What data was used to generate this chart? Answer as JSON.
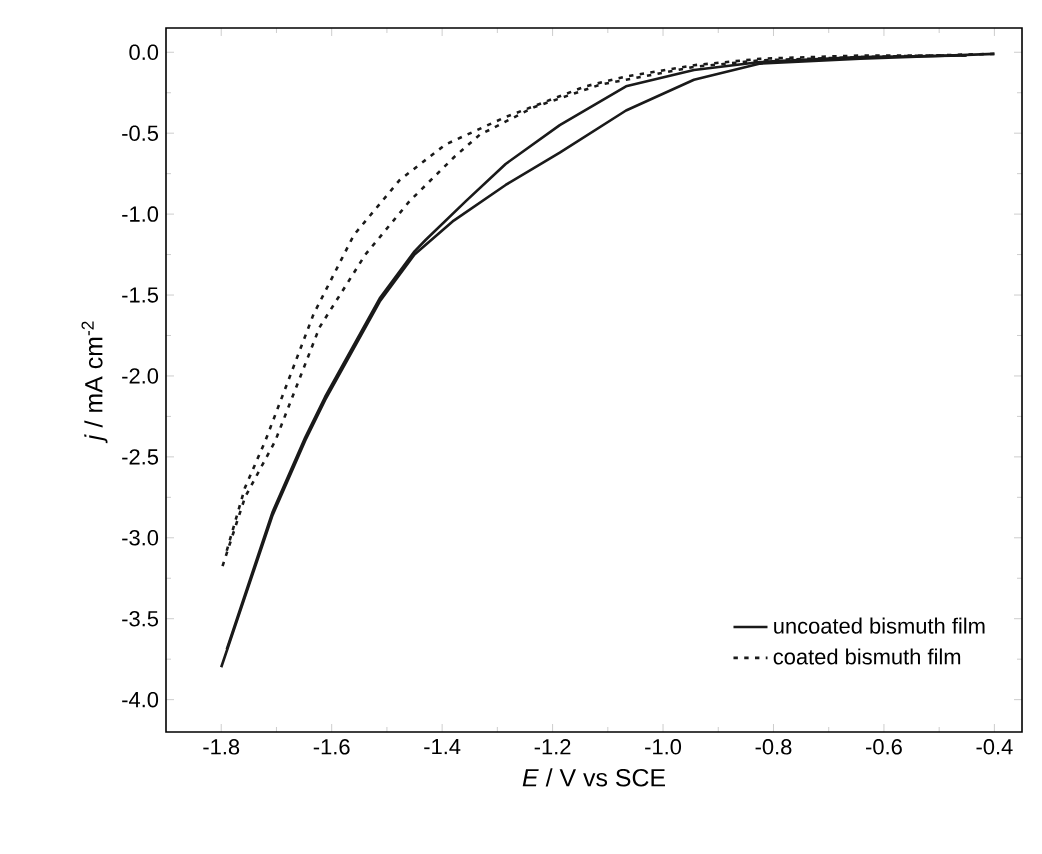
{
  "chart_data": {
    "type": "line",
    "xlabel": "*E* / V vs SCE",
    "ylabel": "*j* / mA cm$^{-2}$",
    "xlim": [
      -1.9,
      -0.35
    ],
    "ylim": [
      -4.2,
      0.15
    ],
    "xticks": [
      {
        "value": -1.8,
        "label": "-1.8"
      },
      {
        "value": -1.6,
        "label": "-1.6"
      },
      {
        "value": -1.4,
        "label": "-1.4"
      },
      {
        "value": -1.2,
        "label": "-1.2"
      },
      {
        "value": -1.0,
        "label": "-1.0"
      },
      {
        "value": -0.8,
        "label": "-0.8"
      },
      {
        "value": -0.6,
        "label": "-0.6"
      },
      {
        "value": -0.4,
        "label": "-0.4"
      }
    ],
    "yticks": [
      {
        "value": 0,
        "label": "0.0"
      },
      {
        "value": -0.5,
        "label": "-0.5"
      },
      {
        "value": -1.0,
        "label": "-1.0"
      },
      {
        "value": -1.5,
        "label": "-1.5"
      },
      {
        "value": -2.0,
        "label": "-2.0"
      },
      {
        "value": -2.5,
        "label": "-2.5"
      },
      {
        "value": -3.0,
        "label": "-3.0"
      },
      {
        "value": -3.5,
        "label": "-3.5"
      },
      {
        "value": -4.0,
        "label": "-4.0"
      }
    ],
    "legend": "bottom right",
    "grid": false,
    "marker": "none",
    "series": [
      {
        "name": "uncoated bismuth film",
        "color": "#1a1a1a",
        "line_style": "solid",
        "x": [
          -0.4,
          -0.643,
          -0.824,
          -0.944,
          -1.067,
          -1.187,
          -1.285,
          -1.379,
          -1.45,
          -1.513,
          -1.612,
          -1.648,
          -1.707,
          -1.8
        ],
        "values": [
          -0.01,
          -0.04,
          -0.07,
          -0.17,
          -0.36,
          -0.62,
          -0.82,
          -1.04,
          -1.25,
          -1.54,
          -2.15,
          -2.4,
          -2.86,
          -3.8
        ]
      },
      {
        "color": "#1a1a1a",
        "line_style": "solid",
        "x": [
          -1.79,
          -1.707,
          -1.648,
          -1.612,
          -1.513,
          -1.45,
          -1.43,
          -1.357,
          -1.285,
          -1.187,
          -1.067,
          -0.944,
          -0.824,
          -0.643,
          -0.45
        ],
        "values": [
          -3.69,
          -2.84,
          -2.38,
          -2.13,
          -1.52,
          -1.23,
          -1.16,
          -0.92,
          -0.69,
          -0.45,
          -0.21,
          -0.11,
          -0.06,
          -0.03,
          -0.02
        ]
      },
      {
        "name": "coated bismuth film",
        "color": "#1a1a1a",
        "line_style": "dotted",
        "x": [
          -0.4,
          -0.643,
          -0.824,
          -0.944,
          -1.067,
          -1.114,
          -1.234,
          -1.332,
          -1.379,
          -1.459,
          -1.539,
          -1.622,
          -1.702,
          -1.757,
          -1.8
        ],
        "values": [
          -0.01,
          -0.03,
          -0.05,
          -0.09,
          -0.17,
          -0.2,
          -0.34,
          -0.51,
          -0.65,
          -0.92,
          -1.25,
          -1.7,
          -2.4,
          -2.75,
          -3.2
        ]
      },
      {
        "color": "#1a1a1a",
        "line_style": "dotted",
        "x": [
          -1.79,
          -1.757,
          -1.72,
          -1.633,
          -1.56,
          -1.477,
          -1.394,
          -1.285,
          -1.14,
          -1.067,
          -0.944,
          -0.824,
          -0.643,
          -0.45
        ],
        "values": [
          -3.08,
          -2.69,
          -2.4,
          -1.62,
          -1.13,
          -0.79,
          -0.57,
          -0.4,
          -0.21,
          -0.15,
          -0.08,
          -0.04,
          -0.02,
          -0.02
        ]
      }
    ]
  }
}
